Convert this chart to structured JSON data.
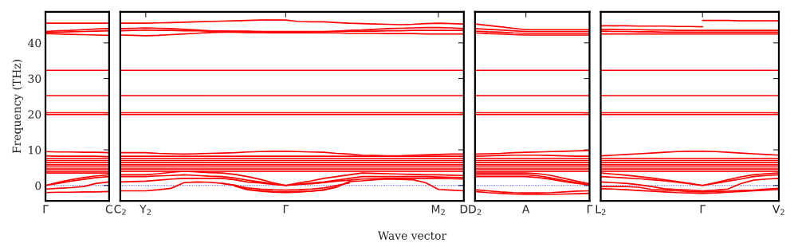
{
  "chart_data": [
    {
      "type": "line",
      "ylabel": "Frequency (THz)",
      "ylim": [
        -4.3,
        48.7
      ],
      "yticks": [
        0,
        10,
        20,
        30,
        40
      ],
      "legend": false,
      "grid": false,
      "categories": [
        "Γ",
        null,
        null,
        null,
        null,
        "C"
      ],
      "ref_lines": [
        {
          "axis": "y",
          "value": 0,
          "color": "#0000ff",
          "line_style": "dotted"
        }
      ],
      "series": [
        {
          "color": "#ff0000",
          "values": [
            45.5,
            45.5,
            45.5,
            45.5,
            45.5,
            45.5
          ]
        },
        {
          "color": "#ff0000",
          "values": [
            43.2,
            43.4,
            43.5,
            43.7,
            43.9,
            44.0
          ]
        },
        {
          "color": "#ff0000",
          "values": [
            42.9,
            43.0,
            43.1,
            43.2,
            43.3,
            43.4
          ]
        },
        {
          "color": "#ff0000",
          "values": [
            42.6,
            42.5,
            42.4,
            42.3,
            42.2,
            42.1
          ]
        },
        {
          "color": "#ff0000",
          "values": [
            32.3,
            32.3,
            32.3,
            32.3,
            32.3,
            32.3
          ]
        },
        {
          "color": "#ff0000",
          "values": [
            25.2,
            25.2,
            25.2,
            25.2,
            25.2,
            25.2
          ]
        },
        {
          "color": "#ff0000",
          "values": [
            20.4,
            20.4,
            20.4,
            20.4,
            20.4,
            20.4
          ]
        },
        {
          "color": "#ff0000",
          "values": [
            19.9,
            19.9,
            19.9,
            19.9,
            19.9,
            19.9
          ]
        },
        {
          "color": "#ff0000",
          "values": [
            9.5,
            9.4,
            9.4,
            9.3,
            9.3,
            9.2
          ]
        },
        {
          "color": "#ff0000",
          "values": [
            8.3,
            8.2,
            8.2,
            8.2,
            8.2,
            8.1
          ]
        },
        {
          "color": "#ff0000",
          "values": [
            7.6,
            7.6,
            7.6,
            7.6,
            7.6,
            7.6
          ]
        },
        {
          "color": "#ff0000",
          "values": [
            7.0,
            7.0,
            7.0,
            7.0,
            7.0,
            7.0
          ]
        },
        {
          "color": "#ff0000",
          "values": [
            6.4,
            6.4,
            6.4,
            6.4,
            6.4,
            6.4
          ]
        },
        {
          "color": "#ff0000",
          "values": [
            5.8,
            5.8,
            5.8,
            5.8,
            5.8,
            5.8
          ]
        },
        {
          "color": "#ff0000",
          "values": [
            5.2,
            5.2,
            5.2,
            5.2,
            5.2,
            5.2
          ]
        },
        {
          "color": "#ff0000",
          "values": [
            4.6,
            4.6,
            4.6,
            4.6,
            4.6,
            4.6
          ]
        },
        {
          "color": "#ff0000",
          "values": [
            4.0,
            4.0,
            4.0,
            4.0,
            4.0,
            4.0
          ]
        },
        {
          "color": "#ff0000",
          "values": [
            3.5,
            3.5,
            3.5,
            3.5,
            3.5,
            3.5
          ]
        },
        {
          "color": "#ff0000",
          "values": [
            0,
            0.9,
            1.6,
            2.2,
            2.7,
            3.0
          ]
        },
        {
          "color": "#ff0000",
          "values": [
            0,
            0.6,
            1.2,
            1.7,
            2.2,
            2.5
          ]
        },
        {
          "color": "#ff0000",
          "values": [
            -1.0,
            -0.8,
            -0.6,
            -0.3,
            0.6,
            1.0
          ]
        },
        {
          "color": "#ff0000",
          "values": [
            -2.0,
            -1.9,
            -1.9,
            -1.8,
            -1.8,
            -1.7
          ]
        }
      ]
    },
    {
      "type": "line",
      "xlabel": "Wave vector",
      "ylim": [
        -4.3,
        48.7
      ],
      "yticks": [
        0,
        10,
        20,
        30,
        40
      ],
      "tick_labels": "x",
      "legend": false,
      "grid": false,
      "categories": [
        "C$_{2}$",
        null,
        "Y$_{2}$",
        null,
        null,
        null,
        null,
        null,
        null,
        null,
        null,
        null,
        null,
        "Γ",
        null,
        null,
        null,
        null,
        null,
        null,
        null,
        null,
        null,
        null,
        null,
        "M$_{2}$",
        null,
        "D"
      ],
      "ref_lines": [
        {
          "axis": "y",
          "value": 0,
          "color": "#0000ff",
          "line_style": "dotted"
        }
      ],
      "series": [
        {
          "color": "#ff0000",
          "values": [
            45.5,
            45.5,
            45.5,
            45.6,
            45.7,
            45.8,
            45.9,
            46.0,
            46.1,
            46.2,
            46.3,
            46.4,
            46.4,
            46.4,
            46.0,
            45.9,
            45.9,
            45.7,
            45.5,
            45.4,
            45.3,
            45.2,
            45.1,
            45.2,
            45.4,
            45.5,
            45.4,
            45.3
          ]
        },
        {
          "color": "#ff0000",
          "values": [
            44.0,
            44.1,
            44.2,
            44.1,
            44.0,
            43.8,
            43.6,
            43.4,
            43.3,
            43.2,
            43.1,
            43.1,
            43.0,
            43.0,
            43.0,
            43.1,
            43.1,
            43.3,
            43.5,
            43.6,
            43.8,
            44.0,
            44.1,
            44.2,
            44.3,
            44.3,
            44.2,
            44.0
          ]
        },
        {
          "color": "#ff0000",
          "values": [
            43.4,
            43.5,
            43.6,
            43.5,
            43.5,
            43.4,
            43.4,
            43.3,
            43.3,
            43.3,
            43.3,
            43.2,
            43.2,
            43.2,
            43.2,
            43.2,
            43.2,
            43.2,
            43.3,
            43.3,
            43.3,
            43.4,
            43.4,
            43.5,
            43.5,
            43.5,
            43.5,
            43.5
          ]
        },
        {
          "color": "#ff0000",
          "values": [
            42.2,
            42.1,
            42.0,
            42.1,
            42.3,
            42.5,
            42.7,
            42.9,
            43.0,
            43.0,
            42.9,
            42.9,
            42.8,
            42.8,
            42.8,
            42.8,
            42.8,
            42.8,
            42.7,
            42.7,
            42.7,
            42.6,
            42.6,
            42.6,
            42.5,
            42.5,
            42.5,
            42.5
          ]
        },
        {
          "color": "#ff0000",
          "values": [
            32.3,
            32.3,
            32.3,
            32.3,
            32.3,
            32.3,
            32.3,
            32.3,
            32.3,
            32.3,
            32.3,
            32.3,
            32.3,
            32.3,
            32.3,
            32.3,
            32.3,
            32.3,
            32.3,
            32.3,
            32.3,
            32.3,
            32.3,
            32.3,
            32.3,
            32.3,
            32.3,
            32.3
          ]
        },
        {
          "color": "#ff0000",
          "values": [
            25.2,
            25.2,
            25.2,
            25.2,
            25.2,
            25.2,
            25.2,
            25.2,
            25.2,
            25.2,
            25.2,
            25.2,
            25.2,
            25.2,
            25.2,
            25.2,
            25.2,
            25.2,
            25.2,
            25.2,
            25.2,
            25.2,
            25.2,
            25.2,
            25.2,
            25.2,
            25.2,
            25.2
          ]
        },
        {
          "color": "#ff0000",
          "values": [
            20.4,
            20.4,
            20.4,
            20.4,
            20.4,
            20.4,
            20.4,
            20.4,
            20.4,
            20.4,
            20.4,
            20.4,
            20.4,
            20.4,
            20.4,
            20.4,
            20.4,
            20.4,
            20.4,
            20.4,
            20.4,
            20.4,
            20.4,
            20.4,
            20.4,
            20.4,
            20.4,
            20.4
          ]
        },
        {
          "color": "#ff0000",
          "values": [
            19.9,
            19.9,
            19.9,
            19.9,
            19.9,
            19.9,
            19.9,
            19.9,
            19.9,
            19.9,
            19.9,
            19.9,
            19.9,
            19.9,
            19.9,
            19.9,
            19.9,
            19.9,
            19.9,
            19.9,
            19.9,
            19.9,
            19.9,
            19.9,
            19.9,
            19.9,
            19.9,
            19.9
          ]
        },
        {
          "color": "#ff0000",
          "values": [
            9.2,
            9.2,
            9.2,
            9.0,
            8.9,
            8.8,
            8.9,
            9.0,
            9.1,
            9.2,
            9.4,
            9.5,
            9.6,
            9.6,
            9.5,
            9.4,
            9.3,
            9.0,
            8.8,
            8.5,
            8.4,
            8.3,
            8.3,
            8.5,
            8.6,
            8.7,
            8.8,
            8.8
          ]
        },
        {
          "color": "#ff0000",
          "values": [
            8.2,
            8.2,
            8.2,
            8.2,
            8.2,
            8.2,
            8.2,
            8.2,
            8.2,
            8.2,
            8.2,
            8.2,
            8.2,
            8.2,
            8.2,
            8.2,
            8.2,
            8.2,
            8.2,
            8.2,
            8.2,
            8.2,
            8.2,
            8.2,
            8.2,
            8.2,
            8.2,
            8.2
          ]
        },
        {
          "color": "#ff0000",
          "values": [
            7.6,
            7.6,
            7.6,
            7.6,
            7.6,
            7.6,
            7.6,
            7.6,
            7.6,
            7.6,
            7.6,
            7.6,
            7.6,
            7.6,
            7.6,
            7.6,
            7.6,
            7.6,
            7.6,
            7.6,
            7.6,
            7.6,
            7.6,
            7.6,
            7.6,
            7.6,
            7.6,
            7.6
          ]
        },
        {
          "color": "#ff0000",
          "values": [
            7.0,
            7.0,
            7.0,
            7.0,
            7.0,
            7.0,
            7.0,
            7.0,
            7.0,
            7.0,
            7.0,
            7.0,
            7.0,
            7.0,
            7.0,
            7.0,
            7.0,
            7.0,
            7.0,
            7.0,
            7.0,
            7.0,
            7.0,
            7.0,
            7.0,
            7.0,
            7.0,
            7.0
          ]
        },
        {
          "color": "#ff0000",
          "values": [
            6.4,
            6.4,
            6.4,
            6.4,
            6.4,
            6.4,
            6.4,
            6.4,
            6.4,
            6.4,
            6.4,
            6.4,
            6.4,
            6.4,
            6.4,
            6.4,
            6.4,
            6.4,
            6.4,
            6.4,
            6.4,
            6.4,
            6.4,
            6.4,
            6.4,
            6.4,
            6.4,
            6.4
          ]
        },
        {
          "color": "#ff0000",
          "values": [
            5.8,
            5.8,
            5.8,
            5.8,
            5.8,
            5.8,
            5.8,
            5.8,
            5.8,
            5.8,
            5.8,
            5.8,
            5.8,
            5.8,
            5.8,
            5.8,
            5.8,
            5.8,
            5.8,
            5.8,
            5.8,
            5.8,
            5.8,
            5.8,
            5.8,
            5.8,
            5.8,
            5.8
          ]
        },
        {
          "color": "#ff0000",
          "values": [
            5.2,
            5.2,
            5.2,
            5.2,
            5.2,
            5.2,
            5.2,
            5.2,
            5.2,
            5.2,
            5.2,
            5.2,
            5.2,
            5.2,
            5.2,
            5.2,
            5.2,
            5.2,
            5.2,
            5.2,
            5.2,
            5.2,
            5.2,
            5.2,
            5.2,
            5.2,
            5.2,
            5.2
          ]
        },
        {
          "color": "#ff0000",
          "values": [
            4.6,
            4.6,
            4.6,
            4.6,
            4.6,
            4.6,
            4.6,
            4.6,
            4.6,
            4.6,
            4.6,
            4.6,
            4.6,
            4.6,
            4.6,
            4.6,
            4.6,
            4.6,
            4.6,
            4.6,
            4.6,
            4.6,
            4.6,
            4.6,
            4.6,
            4.6,
            4.6,
            4.6
          ]
        },
        {
          "color": "#ff0000",
          "values": [
            4.0,
            4.0,
            4.0,
            4.0,
            4.0,
            4.0,
            4.0,
            4.0,
            4.0,
            4.0,
            4.0,
            4.0,
            4.0,
            4.0,
            4.0,
            4.0,
            4.0,
            4.0,
            4.0,
            4.0,
            4.0,
            4.0,
            4.0,
            4.0,
            4.0,
            4.0,
            4.0,
            4.0
          ]
        },
        {
          "color": "#ff0000",
          "values": [
            3.0,
            3.0,
            3.0,
            3.3,
            3.7,
            4.0,
            3.8,
            3.6,
            3.5,
            3.1,
            2.5,
            1.7,
            0.8,
            0,
            0.7,
            1.3,
            2.0,
            2.5,
            3.0,
            3.5,
            3.4,
            3.3,
            3.2,
            3.1,
            3.0,
            3.0,
            2.9,
            2.8
          ]
        },
        {
          "color": "#ff0000",
          "values": [
            2.5,
            2.5,
            2.5,
            2.7,
            2.8,
            3.0,
            2.8,
            2.6,
            2.5,
            2.1,
            1.5,
            1.0,
            0.5,
            0,
            0.3,
            0.7,
            1.0,
            1.5,
            2.0,
            2.5,
            2.5,
            2.5,
            2.5,
            2.5,
            2.5,
            2.4,
            2.3,
            2.2
          ]
        },
        {
          "color": "#ff0000",
          "values": [
            1.0,
            1.1,
            1.2,
            1.5,
            1.8,
            2.0,
            2.0,
            2.0,
            2.0,
            1.6,
            1.0,
            0.7,
            0.3,
            0,
            0.3,
            0.5,
            0.8,
            1.2,
            1.5,
            1.8,
            1.9,
            2.0,
            2.0,
            2.0,
            2.0,
            2.0,
            1.9,
            1.8
          ]
        },
        {
          "color": "#ff0000",
          "values": [
            -1.5,
            -1.5,
            -1.5,
            -1.2,
            -0.8,
            0.8,
            1.0,
            0.9,
            0.6,
            0.1,
            -1.1,
            -1.4,
            -1.7,
            -1.8,
            -1.7,
            -1.6,
            -1.3,
            -0.5,
            1.1,
            1.3,
            1.6,
            1.8,
            1.7,
            1.6,
            0.8,
            -1.1,
            -1.3,
            -1.5
          ]
        },
        {
          "color": "#ff0000",
          "values": [
            null,
            null,
            null,
            null,
            null,
            null,
            null,
            null,
            0.6,
            0,
            -0.7,
            -1.0,
            -1.2,
            -1.3,
            -1.2,
            -1.0,
            -0.7,
            0,
            0.7,
            null,
            null,
            null,
            null,
            null,
            null,
            null,
            null,
            null
          ]
        },
        {
          "color": "#ff0000",
          "values": [
            null,
            null,
            null,
            null,
            null,
            null,
            null,
            null,
            null,
            -0.2,
            -1.2,
            -1.6,
            -1.9,
            -2.0,
            -1.9,
            -1.6,
            -1.2,
            -0.4,
            null,
            null,
            null,
            null,
            null,
            null,
            null,
            null,
            null,
            null
          ]
        }
      ]
    },
    {
      "type": "line",
      "ylim": [
        -4.3,
        48.7
      ],
      "yticks": [
        0,
        10,
        20,
        30,
        40
      ],
      "tick_labels": "x",
      "legend": false,
      "grid": false,
      "categories": [
        "D$_{2}$",
        null,
        null,
        null,
        "A",
        null,
        null,
        null,
        null,
        "Γ"
      ],
      "ref_lines": [
        {
          "axis": "y",
          "value": 0,
          "color": "#0000ff",
          "line_style": "dotted"
        }
      ],
      "series": [
        {
          "color": "#ff0000",
          "values": [
            45.3,
            44.9,
            44.5,
            44.1,
            43.7,
            43.7,
            43.7,
            43.7,
            43.7,
            43.7
          ]
        },
        {
          "color": "#ff0000",
          "values": [
            44.0,
            43.8,
            43.6,
            43.4,
            43.2,
            43.2,
            43.2,
            43.2,
            43.2,
            43.2
          ]
        },
        {
          "color": "#ff0000",
          "values": [
            43.3,
            43.1,
            43.0,
            42.8,
            42.7,
            42.7,
            42.7,
            42.7,
            42.7,
            42.7
          ]
        },
        {
          "color": "#ff0000",
          "values": [
            42.8,
            42.6,
            42.5,
            42.3,
            42.2,
            42.2,
            42.2,
            42.2,
            42.2,
            42.2
          ]
        },
        {
          "color": "#ff0000",
          "values": [
            32.3,
            32.3,
            32.3,
            32.3,
            32.3,
            32.3,
            32.3,
            32.3,
            32.3,
            32.3
          ]
        },
        {
          "color": "#ff0000",
          "values": [
            25.2,
            25.2,
            25.2,
            25.2,
            25.2,
            25.2,
            25.2,
            25.2,
            25.2,
            25.2
          ]
        },
        {
          "color": "#ff0000",
          "values": [
            20.4,
            20.4,
            20.4,
            20.4,
            20.4,
            20.4,
            20.4,
            20.4,
            20.4,
            20.4
          ]
        },
        {
          "color": "#ff0000",
          "values": [
            19.9,
            19.9,
            19.9,
            19.9,
            19.9,
            19.9,
            19.9,
            19.9,
            19.9,
            19.9
          ]
        },
        {
          "color": "#ff0000",
          "values": [
            8.8,
            8.9,
            9.0,
            9.2,
            9.3,
            9.4,
            9.5,
            9.6,
            9.7,
            9.8
          ]
        },
        {
          "color": "#ff0000",
          "values": [
            8.2,
            8.3,
            8.4,
            8.5,
            8.5,
            8.5,
            8.4,
            8.3,
            8.2,
            8.2
          ]
        },
        {
          "color": "#ff0000",
          "values": [
            7.6,
            7.6,
            7.6,
            7.6,
            7.6,
            7.6,
            7.6,
            7.6,
            7.6,
            7.6
          ]
        },
        {
          "color": "#ff0000",
          "values": [
            7.0,
            7.0,
            7.0,
            7.0,
            7.0,
            7.0,
            7.0,
            7.0,
            7.0,
            7.0
          ]
        },
        {
          "color": "#ff0000",
          "values": [
            6.4,
            6.4,
            6.4,
            6.4,
            6.4,
            6.4,
            6.4,
            6.4,
            6.4,
            6.4
          ]
        },
        {
          "color": "#ff0000",
          "values": [
            5.8,
            5.8,
            5.8,
            5.8,
            5.8,
            5.8,
            5.8,
            5.8,
            5.8,
            5.8
          ]
        },
        {
          "color": "#ff0000",
          "values": [
            5.2,
            5.2,
            5.2,
            5.2,
            5.2,
            5.2,
            5.2,
            5.2,
            5.2,
            5.2
          ]
        },
        {
          "color": "#ff0000",
          "values": [
            4.6,
            4.6,
            4.6,
            4.6,
            4.6,
            4.6,
            4.6,
            4.6,
            4.6,
            4.6
          ]
        },
        {
          "color": "#ff0000",
          "values": [
            4.0,
            4.0,
            4.0,
            4.0,
            4.0,
            4.0,
            4.0,
            4.0,
            4.0,
            4.0
          ]
        },
        {
          "color": "#ff0000",
          "values": [
            3.5,
            3.5,
            3.5,
            3.5,
            3.5,
            3.3,
            2.8,
            2.0,
            1.2,
            0.5
          ]
        },
        {
          "color": "#ff0000",
          "values": [
            3.0,
            3.0,
            3.0,
            3.0,
            3.0,
            2.7,
            2.1,
            1.4,
            0.8,
            0.2
          ]
        },
        {
          "color": "#ff0000",
          "values": [
            2.5,
            2.5,
            2.5,
            2.5,
            2.5,
            2.2,
            1.7,
            1.1,
            0.6,
            0.2
          ]
        },
        {
          "color": "#ff0000",
          "values": [
            -1.2,
            -1.5,
            -1.8,
            -2.0,
            -2.1,
            -2.1,
            -2.0,
            -1.8,
            -1.6,
            -1.5
          ]
        },
        {
          "color": "#ff0000",
          "values": [
            -1.7,
            -2.0,
            -2.2,
            -2.4,
            -2.5,
            -2.5,
            -2.5,
            -2.4,
            -2.3,
            -2.2
          ]
        }
      ]
    },
    {
      "type": "line",
      "ylim": [
        -4.3,
        48.7
      ],
      "yticks": [
        0,
        10,
        20,
        30,
        40
      ],
      "tick_labels": "x",
      "legend": false,
      "grid": false,
      "categories": [
        "L$_{2}$",
        null,
        null,
        null,
        null,
        null,
        null,
        null,
        "Γ",
        null,
        null,
        null,
        null,
        null,
        "V$_{2}$"
      ],
      "ref_lines": [
        {
          "axis": "y",
          "value": 0,
          "color": "#0000ff",
          "line_style": "dotted"
        }
      ],
      "series": [
        {
          "color": "#ff0000",
          "values": [
            44.8,
            44.8,
            44.8,
            44.7,
            44.7,
            44.7,
            44.6,
            44.6,
            44.5,
            null,
            null,
            null,
            null,
            null,
            null
          ]
        },
        {
          "color": "#ff0000",
          "values": [
            null,
            null,
            null,
            null,
            null,
            null,
            null,
            null,
            46.3,
            46.3,
            46.3,
            46.2,
            46.2,
            46.2,
            46.2
          ]
        },
        {
          "color": "#ff0000",
          "values": [
            43.8,
            43.8,
            43.7,
            43.7,
            43.6,
            43.6,
            43.5,
            43.5,
            43.5,
            43.5,
            43.5,
            43.5,
            43.5,
            43.5,
            43.5
          ]
        },
        {
          "color": "#ff0000",
          "values": [
            43.3,
            43.2,
            43.2,
            43.1,
            43.1,
            43.0,
            43.0,
            43.0,
            43.0,
            43.0,
            43.0,
            43.0,
            43.0,
            43.0,
            43.0
          ]
        },
        {
          "color": "#ff0000",
          "values": [
            42.5,
            42.5,
            42.5,
            42.5,
            42.5,
            42.5,
            42.5,
            42.5,
            42.5,
            42.5,
            42.5,
            42.5,
            42.5,
            42.5,
            42.5
          ]
        },
        {
          "color": "#ff0000",
          "values": [
            32.3,
            32.3,
            32.3,
            32.3,
            32.3,
            32.3,
            32.3,
            32.3,
            32.3,
            32.3,
            32.3,
            32.3,
            32.3,
            32.3,
            32.3
          ]
        },
        {
          "color": "#ff0000",
          "values": [
            25.2,
            25.2,
            25.2,
            25.2,
            25.2,
            25.2,
            25.2,
            25.2,
            25.2,
            25.2,
            25.2,
            25.2,
            25.2,
            25.2,
            25.2
          ]
        },
        {
          "color": "#ff0000",
          "values": [
            20.4,
            20.4,
            20.4,
            20.4,
            20.4,
            20.4,
            20.4,
            20.4,
            20.4,
            20.4,
            20.4,
            20.4,
            20.4,
            20.4,
            20.4
          ]
        },
        {
          "color": "#ff0000",
          "values": [
            19.9,
            19.9,
            19.9,
            19.9,
            19.9,
            19.9,
            19.9,
            19.9,
            19.9,
            19.9,
            19.9,
            19.9,
            19.9,
            19.9,
            19.9
          ]
        },
        {
          "color": "#ff0000",
          "values": [
            8.3,
            8.5,
            8.7,
            8.9,
            9.1,
            9.3,
            9.5,
            9.6,
            9.6,
            9.5,
            9.3,
            9.1,
            8.9,
            8.7,
            8.5
          ]
        },
        {
          "color": "#ff0000",
          "values": [
            7.6,
            7.6,
            7.6,
            7.6,
            7.6,
            7.6,
            7.6,
            7.6,
            7.6,
            7.6,
            7.6,
            7.6,
            7.6,
            7.6,
            7.6
          ]
        },
        {
          "color": "#ff0000",
          "values": [
            7.0,
            7.0,
            7.0,
            7.0,
            7.0,
            7.0,
            7.0,
            7.0,
            7.0,
            7.0,
            7.0,
            7.0,
            7.0,
            7.0,
            7.0
          ]
        },
        {
          "color": "#ff0000",
          "values": [
            6.4,
            6.4,
            6.4,
            6.4,
            6.4,
            6.4,
            6.4,
            6.4,
            6.4,
            6.4,
            6.4,
            6.4,
            6.4,
            6.4,
            6.4
          ]
        },
        {
          "color": "#ff0000",
          "values": [
            5.8,
            5.8,
            5.8,
            5.8,
            5.8,
            5.8,
            5.8,
            5.8,
            5.8,
            5.8,
            5.8,
            5.8,
            5.8,
            5.8,
            5.8
          ]
        },
        {
          "color": "#ff0000",
          "values": [
            5.2,
            5.2,
            5.2,
            5.2,
            5.2,
            5.2,
            5.2,
            5.2,
            5.2,
            5.2,
            5.2,
            5.2,
            5.2,
            5.2,
            5.2
          ]
        },
        {
          "color": "#ff0000",
          "values": [
            4.6,
            4.6,
            4.6,
            4.6,
            4.6,
            4.6,
            4.6,
            4.6,
            4.6,
            4.6,
            4.6,
            4.6,
            4.6,
            4.6,
            4.6
          ]
        },
        {
          "color": "#ff0000",
          "values": [
            4.0,
            4.0,
            4.0,
            4.0,
            4.0,
            4.0,
            4.0,
            4.0,
            4.0,
            4.0,
            4.0,
            4.0,
            4.0,
            4.0,
            4.0
          ]
        },
        {
          "color": "#ff0000",
          "values": [
            3.5,
            3.2,
            2.9,
            2.5,
            2.1,
            1.6,
            1.1,
            0.6,
            0,
            0.8,
            1.6,
            2.4,
            3.0,
            3.3,
            3.5
          ]
        },
        {
          "color": "#ff0000",
          "values": [
            2.5,
            2.3,
            2.1,
            1.9,
            1.6,
            1.3,
            0.9,
            0.5,
            0,
            0.6,
            1.2,
            1.8,
            2.5,
            2.8,
            3.0
          ]
        },
        {
          "color": "#ff0000",
          "values": [
            1.0,
            0.8,
            0.6,
            0.2,
            -0.3,
            -0.9,
            -1.1,
            -1.3,
            -1.5,
            -1.3,
            -1.0,
            0.5,
            1.5,
            1.8,
            2.0
          ]
        },
        {
          "color": "#ff0000",
          "values": [
            -0.3,
            -0.3,
            -0.3,
            -0.5,
            -1.1,
            -1.3,
            -1.5,
            -1.7,
            -1.8,
            -1.7,
            -1.6,
            -1.4,
            -1.3,
            -1.0,
            -0.8
          ]
        },
        {
          "color": "#ff0000",
          "values": [
            -0.9,
            -1.0,
            -1.2,
            -1.4,
            -1.6,
            -1.8,
            -2.0,
            -2.1,
            -2.2,
            -2.1,
            -1.9,
            -1.7,
            -1.5,
            -1.3,
            -1.1
          ]
        }
      ]
    }
  ]
}
